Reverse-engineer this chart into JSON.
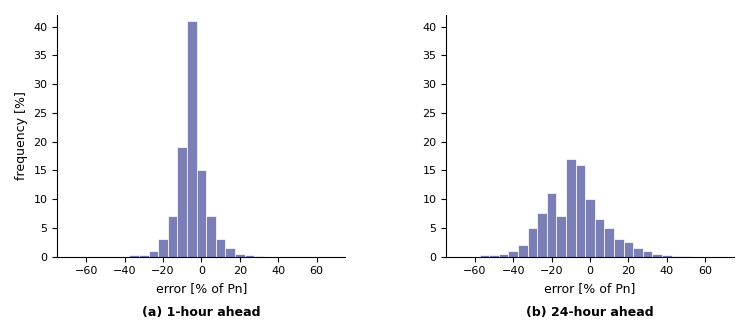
{
  "bar_color": "#7b7fb5",
  "bar_edgecolor": "#ffffff",
  "xlim": [
    -75,
    75
  ],
  "ylim_a": [
    0,
    42
  ],
  "ylim_b": [
    0,
    42
  ],
  "xticks": [
    -60,
    -40,
    -20,
    0,
    20,
    40,
    60
  ],
  "yticks_a": [
    0,
    5,
    10,
    15,
    20,
    25,
    30,
    35,
    40
  ],
  "yticks_b": [
    0,
    5,
    10,
    15,
    20,
    25,
    30,
    35,
    40
  ],
  "xlabel": "error [% of Pn]",
  "ylabel": "frequency [%]",
  "subtitle_a": "(a) 1-hour ahead",
  "subtitle_b": "(b) 24-hour ahead",
  "bin_width": 5,
  "bins_a_centers": [
    -35,
    -30,
    -25,
    -20,
    -15,
    -10,
    -5,
    0,
    5,
    10,
    15,
    20,
    25,
    30
  ],
  "bins_a_heights": [
    0.2,
    0.3,
    1.0,
    3.0,
    7.0,
    19.0,
    41.0,
    15.0,
    7.0,
    3.0,
    1.5,
    0.5,
    0.2,
    0.1
  ],
  "bins_b_centers": [
    -55,
    -50,
    -45,
    -40,
    -35,
    -30,
    -25,
    -20,
    -15,
    -10,
    -5,
    0,
    5,
    10,
    15,
    20,
    25,
    30,
    35,
    40,
    45,
    50
  ],
  "bins_b_heights": [
    0.2,
    0.3,
    0.5,
    1.0,
    2.0,
    5.0,
    7.5,
    11.0,
    7.0,
    17.0,
    16.0,
    10.0,
    6.5,
    5.0,
    3.0,
    2.5,
    1.5,
    1.0,
    0.5,
    0.2,
    0.1,
    0.1
  ]
}
